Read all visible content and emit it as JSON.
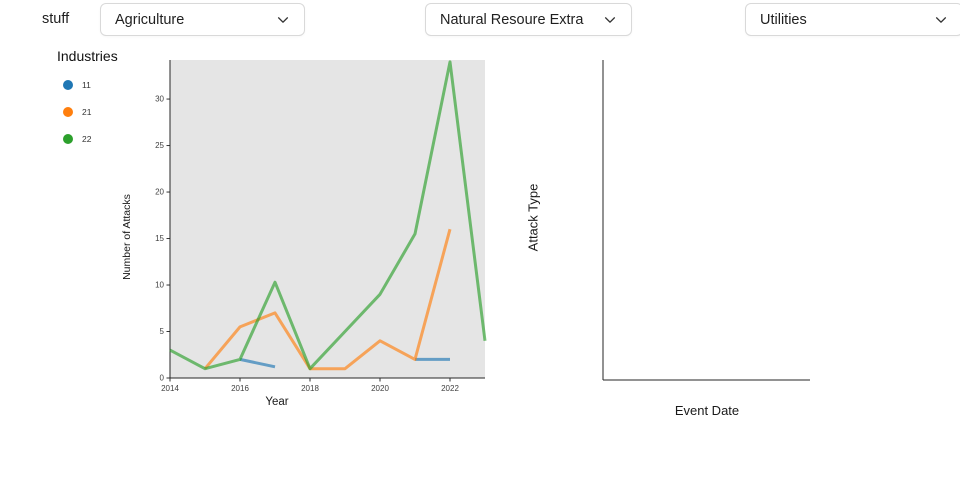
{
  "header": {
    "label": "stuff",
    "dropdowns": [
      {
        "value": "Agriculture"
      },
      {
        "value": "Natural Resoure Extra"
      },
      {
        "value": "Utilities"
      }
    ]
  },
  "legend": {
    "title": "Industries",
    "items": [
      {
        "label": "11",
        "color": "#1f77b4"
      },
      {
        "label": "21",
        "color": "#ff7f0e"
      },
      {
        "label": "22",
        "color": "#2ca02c"
      }
    ]
  },
  "chart_data": [
    {
      "type": "line",
      "title": "",
      "xlabel": "Year",
      "ylabel": "Number of Attacks",
      "xlim": [
        2014,
        2023
      ],
      "ylim": [
        0,
        34.2
      ],
      "xticks": [
        2014,
        2016,
        2018,
        2020,
        2022
      ],
      "yticks": [
        0,
        5,
        10,
        15,
        20,
        25,
        30
      ],
      "grid": false,
      "plot_bg": "#e5e5e5",
      "line_width": 3,
      "line_opacity": 0.65,
      "series": [
        {
          "name": "11",
          "color": "#1f77b4",
          "segments": [
            [
              [
                2016,
                2
              ],
              [
                2017,
                1.2
              ]
            ],
            [
              [
                2021,
                2
              ],
              [
                2022,
                2
              ]
            ]
          ]
        },
        {
          "name": "21",
          "color": "#ff7f0e",
          "segments": [
            [
              [
                2015,
                1
              ],
              [
                2016,
                5.5
              ],
              [
                2017,
                7
              ],
              [
                2018,
                1
              ],
              [
                2019,
                1
              ],
              [
                2020,
                4
              ],
              [
                2021,
                2
              ],
              [
                2022,
                16
              ]
            ]
          ]
        },
        {
          "name": "22",
          "color": "#2ca02c",
          "segments": [
            [
              [
                2014,
                3
              ],
              [
                2015,
                1
              ],
              [
                2016,
                2
              ],
              [
                2017,
                10.3
              ],
              [
                2018,
                1
              ],
              [
                2019,
                5
              ],
              [
                2020,
                9
              ],
              [
                2021,
                15.5
              ],
              [
                2022,
                34
              ],
              [
                2023,
                4
              ]
            ]
          ]
        }
      ]
    },
    {
      "type": "line",
      "title": "",
      "xlabel": "Event Date",
      "ylabel": "Attack Type",
      "grid": false,
      "series": []
    }
  ]
}
